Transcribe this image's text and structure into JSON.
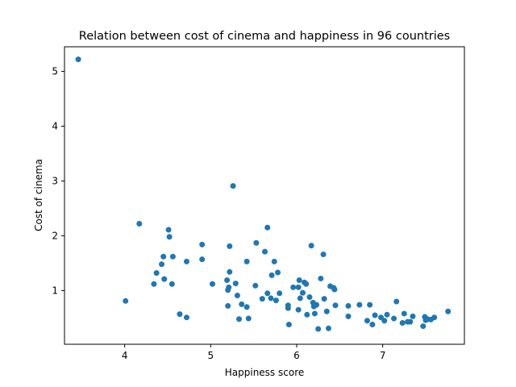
{
  "chart_data": {
    "type": "scatter",
    "title": "Relation between cost of cinema and happiness in 96 countries",
    "xlabel": "Happiness score",
    "ylabel": "Cost of cinema",
    "xlim": [
      3.3,
      7.95
    ],
    "ylim": [
      0.02,
      5.45
    ],
    "xticks": [
      4,
      5,
      6,
      7
    ],
    "yticks": [
      1,
      2,
      3,
      4,
      5
    ],
    "grid": false,
    "marker_color": "#1f77b4",
    "series": [
      {
        "points": [
          [
            3.46,
            5.22
          ],
          [
            4.01,
            0.81
          ],
          [
            4.17,
            2.22
          ],
          [
            4.34,
            1.12
          ],
          [
            4.37,
            1.32
          ],
          [
            4.43,
            1.48
          ],
          [
            4.45,
            1.62
          ],
          [
            4.46,
            1.21
          ],
          [
            4.51,
            2.11
          ],
          [
            4.52,
            1.98
          ],
          [
            4.55,
            1.12
          ],
          [
            4.56,
            1.62
          ],
          [
            4.64,
            0.57
          ],
          [
            4.72,
            1.53
          ],
          [
            4.72,
            0.51
          ],
          [
            4.9,
            1.84
          ],
          [
            4.9,
            1.57
          ],
          [
            5.02,
            1.12
          ],
          [
            5.19,
            1.19
          ],
          [
            5.2,
            1.01
          ],
          [
            5.2,
            0.72
          ],
          [
            5.21,
            1.06
          ],
          [
            5.22,
            1.34
          ],
          [
            5.22,
            1.81
          ],
          [
            5.26,
            2.91
          ],
          [
            5.29,
            1.13
          ],
          [
            5.31,
            0.91
          ],
          [
            5.33,
            0.48
          ],
          [
            5.36,
            0.75
          ],
          [
            5.42,
            1.53
          ],
          [
            5.42,
            0.7
          ],
          [
            5.44,
            0.49
          ],
          [
            5.52,
            1.09
          ],
          [
            5.53,
            1.87
          ],
          [
            5.6,
            0.85
          ],
          [
            5.63,
            1.71
          ],
          [
            5.66,
            2.15
          ],
          [
            5.66,
            0.95
          ],
          [
            5.7,
            0.86
          ],
          [
            5.71,
            1.28
          ],
          [
            5.74,
            1.53
          ],
          [
            5.76,
            0.82
          ],
          [
            5.78,
            1.33
          ],
          [
            5.8,
            0.95
          ],
          [
            5.9,
            0.73
          ],
          [
            5.9,
            0.68
          ],
          [
            5.91,
            0.38
          ],
          [
            5.96,
            1.06
          ],
          [
            6.02,
            1.06
          ],
          [
            6.02,
            0.65
          ],
          [
            6.03,
            1.19
          ],
          [
            6.04,
            0.86
          ],
          [
            6.07,
            0.96
          ],
          [
            6.09,
            1.15
          ],
          [
            6.11,
            1.12
          ],
          [
            6.12,
            0.56
          ],
          [
            6.15,
            0.88
          ],
          [
            6.17,
            1.82
          ],
          [
            6.19,
            0.78
          ],
          [
            6.2,
            0.71
          ],
          [
            6.21,
            0.58
          ],
          [
            6.23,
            0.74
          ],
          [
            6.25,
            0.3
          ],
          [
            6.28,
            1.22
          ],
          [
            6.31,
            1.66
          ],
          [
            6.32,
            0.85
          ],
          [
            6.35,
            0.62
          ],
          [
            6.37,
            0.31
          ],
          [
            6.39,
            1.08
          ],
          [
            6.43,
            1.05
          ],
          [
            6.44,
            1.02
          ],
          [
            6.45,
            0.73
          ],
          [
            6.6,
            0.72
          ],
          [
            6.6,
            0.53
          ],
          [
            6.73,
            0.74
          ],
          [
            6.82,
            0.45
          ],
          [
            6.85,
            0.74
          ],
          [
            6.88,
            0.38
          ],
          [
            6.91,
            0.55
          ],
          [
            6.98,
            0.51
          ],
          [
            7.02,
            0.45
          ],
          [
            7.05,
            0.56
          ],
          [
            7.13,
            0.49
          ],
          [
            7.16,
            0.8
          ],
          [
            7.23,
            0.41
          ],
          [
            7.25,
            0.58
          ],
          [
            7.29,
            0.43
          ],
          [
            7.32,
            0.43
          ],
          [
            7.35,
            0.53
          ],
          [
            7.47,
            0.35
          ],
          [
            7.49,
            0.52
          ],
          [
            7.5,
            0.46
          ],
          [
            7.52,
            0.48
          ],
          [
            7.56,
            0.47
          ],
          [
            7.6,
            0.51
          ],
          [
            7.76,
            0.62
          ]
        ]
      }
    ]
  }
}
